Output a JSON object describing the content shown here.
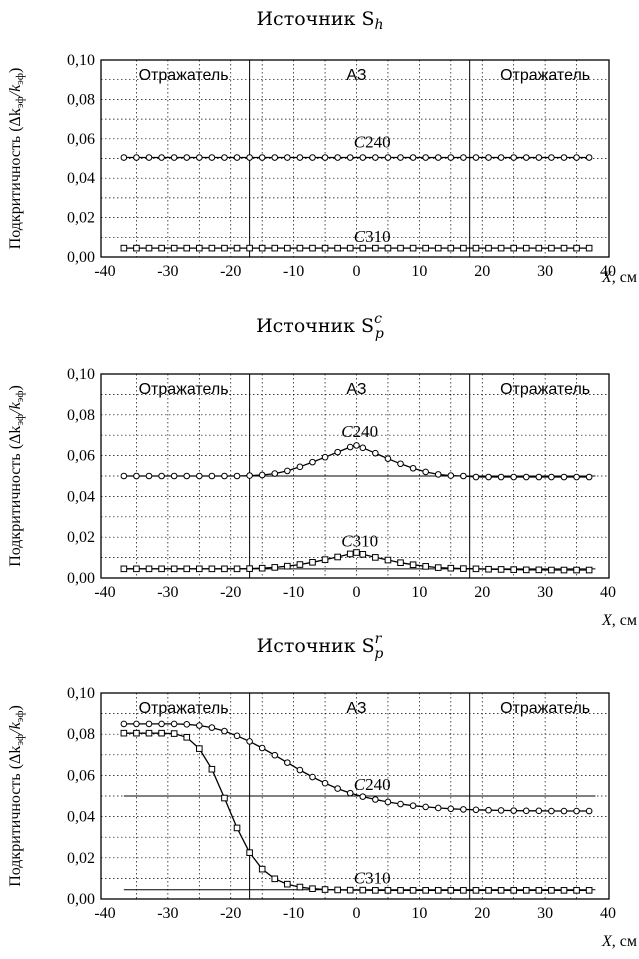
{
  "chart_data": [
    {
      "type": "line",
      "title": "Источник S",
      "title_sub": "h",
      "title_sup": "",
      "ylabel": "Подкритичность (Δk",
      "ylabel_sub1": "эф",
      "ylabel_mid": "/k",
      "ylabel_sub2": "эф",
      "ylabel_end": ")",
      "xlabel_var": "X",
      "xlabel_unit": ", см",
      "xlim": [
        -40,
        40
      ],
      "ylim": [
        0,
        0.1
      ],
      "x_ticks": [
        -40,
        -30,
        -20,
        -10,
        0,
        10,
        20,
        30,
        40
      ],
      "x_tick_labels": [
        "-40",
        "-30",
        "-20",
        "-10",
        "0",
        "10",
        "20",
        "30",
        "40"
      ],
      "y_ticks": [
        0,
        0.02,
        0.04,
        0.06,
        0.08,
        0.1
      ],
      "y_tick_labels": [
        "0,00",
        "0,02",
        "0,04",
        "0,06",
        "0,08",
        "0,10"
      ],
      "grid": true,
      "region_boundaries": [
        -17,
        18
      ],
      "regions": [
        "Отражатель",
        "АЗ",
        "Отражатель"
      ],
      "reference_lines": [],
      "series": [
        {
          "name": "C240",
          "marker": "circle",
          "x": [
            -37,
            -35,
            -33,
            -31,
            -29,
            -27,
            -25,
            -23,
            -21,
            -19,
            -17,
            -15,
            -13,
            -11,
            -9,
            -7,
            -5,
            -3,
            -1,
            1,
            3,
            5,
            7,
            9,
            11,
            13,
            15,
            17,
            19,
            21,
            23,
            25,
            27,
            29,
            31,
            33,
            35,
            37
          ],
          "y": [
            0.0505,
            0.0505,
            0.0505,
            0.0505,
            0.0505,
            0.0505,
            0.0505,
            0.0505,
            0.0505,
            0.0505,
            0.0505,
            0.0505,
            0.0505,
            0.0505,
            0.0505,
            0.0505,
            0.0505,
            0.0505,
            0.0505,
            0.0505,
            0.0505,
            0.0505,
            0.0505,
            0.0505,
            0.0505,
            0.0505,
            0.0505,
            0.0505,
            0.0505,
            0.0505,
            0.0505,
            0.0505,
            0.0505,
            0.0505,
            0.0505,
            0.0505,
            0.0505,
            0.0505
          ]
        },
        {
          "name": "C310",
          "marker": "square",
          "x": [
            -37,
            -35,
            -33,
            -31,
            -29,
            -27,
            -25,
            -23,
            -21,
            -19,
            -17,
            -15,
            -13,
            -11,
            -9,
            -7,
            -5,
            -3,
            -1,
            1,
            3,
            5,
            7,
            9,
            11,
            13,
            15,
            17,
            19,
            21,
            23,
            25,
            27,
            29,
            31,
            33,
            35,
            37
          ],
          "y": [
            0.0045,
            0.0045,
            0.0045,
            0.0045,
            0.0045,
            0.0045,
            0.0045,
            0.0045,
            0.0045,
            0.0045,
            0.0045,
            0.0045,
            0.0045,
            0.0045,
            0.0045,
            0.0045,
            0.0045,
            0.0045,
            0.0045,
            0.0045,
            0.0045,
            0.0045,
            0.0045,
            0.0045,
            0.0045,
            0.0045,
            0.0045,
            0.0045,
            0.0045,
            0.0045,
            0.0045,
            0.0045,
            0.0045,
            0.0045,
            0.0045,
            0.0045,
            0.0045,
            0.0045
          ]
        }
      ]
    },
    {
      "type": "line",
      "title": "Источник S",
      "title_sub": "p",
      "title_sup": "c",
      "ylabel": "Подкритичность (Δk",
      "ylabel_sub1": "эф",
      "ylabel_mid": "/k",
      "ylabel_sub2": "эф",
      "ylabel_end": ")",
      "xlabel_var": "X",
      "xlabel_unit": ", см",
      "xlim": [
        -40,
        40
      ],
      "ylim": [
        0,
        0.1
      ],
      "x_ticks": [
        -40,
        -30,
        -20,
        -10,
        0,
        10,
        20,
        30,
        40
      ],
      "x_tick_labels": [
        "-40",
        "-30",
        "-20",
        "-10",
        "0",
        "10",
        "20",
        "30",
        "40"
      ],
      "y_ticks": [
        0,
        0.02,
        0.04,
        0.06,
        0.08,
        0.1
      ],
      "y_tick_labels": [
        "0,00",
        "0,02",
        "0,04",
        "0,06",
        "0,08",
        "0,10"
      ],
      "grid": true,
      "region_boundaries": [
        -17,
        18
      ],
      "regions": [
        "Отражатель",
        "АЗ",
        "Отражатель"
      ],
      "reference_lines": [
        0.05,
        0.0045
      ],
      "series": [
        {
          "name": "C240",
          "marker": "circle",
          "x": [
            -37,
            -35,
            -33,
            -31,
            -29,
            -27,
            -25,
            -23,
            -21,
            -19,
            -17,
            -15,
            -13,
            -11,
            -9,
            -7,
            -5,
            -3,
            -1,
            0,
            1,
            3,
            5,
            7,
            9,
            11,
            13,
            15,
            17,
            19,
            21,
            23,
            25,
            27,
            29,
            31,
            33,
            35,
            37
          ],
          "y": [
            0.05,
            0.05,
            0.05,
            0.05,
            0.05,
            0.05,
            0.05,
            0.05,
            0.05,
            0.05,
            0.0502,
            0.0505,
            0.0512,
            0.0525,
            0.0545,
            0.0568,
            0.0592,
            0.0617,
            0.0642,
            0.065,
            0.0638,
            0.0612,
            0.0585,
            0.056,
            0.0538,
            0.052,
            0.0508,
            0.0502,
            0.05,
            0.0495,
            0.0495,
            0.0495,
            0.0495,
            0.0495,
            0.0495,
            0.0495,
            0.0495,
            0.0495,
            0.0495
          ]
        },
        {
          "name": "C310",
          "marker": "square",
          "x": [
            -37,
            -35,
            -33,
            -31,
            -29,
            -27,
            -25,
            -23,
            -21,
            -19,
            -17,
            -15,
            -13,
            -11,
            -9,
            -7,
            -5,
            -3,
            -1,
            0,
            1,
            3,
            5,
            7,
            9,
            11,
            13,
            15,
            17,
            19,
            21,
            23,
            25,
            27,
            29,
            31,
            33,
            35,
            37
          ],
          "y": [
            0.0045,
            0.0045,
            0.0045,
            0.0045,
            0.0045,
            0.0045,
            0.0045,
            0.0045,
            0.0045,
            0.0045,
            0.0046,
            0.0048,
            0.0052,
            0.0058,
            0.0066,
            0.0077,
            0.009,
            0.0103,
            0.0118,
            0.0125,
            0.0116,
            0.0101,
            0.0088,
            0.0075,
            0.0065,
            0.0057,
            0.0051,
            0.0048,
            0.0046,
            0.0045,
            0.0043,
            0.0042,
            0.0041,
            0.004,
            0.004,
            0.0039,
            0.0039,
            0.0039,
            0.0039
          ]
        }
      ]
    },
    {
      "type": "line",
      "title": "Источник S",
      "title_sub": "p",
      "title_sup": "r",
      "ylabel": "Подкритичность (Δk",
      "ylabel_sub1": "эф",
      "ylabel_mid": "/k",
      "ylabel_sub2": "эф",
      "ylabel_end": ")",
      "xlabel_var": "X",
      "xlabel_unit": ", см",
      "xlim": [
        -40,
        40
      ],
      "ylim": [
        0,
        0.1
      ],
      "x_ticks": [
        -40,
        -30,
        -20,
        -10,
        0,
        10,
        20,
        30,
        40
      ],
      "x_tick_labels": [
        "-40",
        "-30",
        "-20",
        "-10",
        "0",
        "10",
        "20",
        "30",
        "40"
      ],
      "y_ticks": [
        0,
        0.02,
        0.04,
        0.06,
        0.08,
        0.1
      ],
      "y_tick_labels": [
        "0,00",
        "0,02",
        "0,04",
        "0,06",
        "0,08",
        "0,10"
      ],
      "grid": true,
      "region_boundaries": [
        -17,
        18
      ],
      "regions": [
        "Отражатель",
        "АЗ",
        "Отражатель"
      ],
      "reference_lines": [
        0.05,
        0.0045
      ],
      "series": [
        {
          "name": "C240",
          "marker": "circle",
          "x": [
            -37,
            -35,
            -33,
            -31,
            -29,
            -27,
            -25,
            -23,
            -21,
            -19,
            -17,
            -15,
            -13,
            -11,
            -9,
            -7,
            -5,
            -3,
            -1,
            1,
            3,
            5,
            7,
            9,
            11,
            13,
            15,
            17,
            19,
            21,
            23,
            25,
            27,
            29,
            31,
            33,
            35,
            37
          ],
          "y": [
            0.085,
            0.085,
            0.085,
            0.085,
            0.085,
            0.0848,
            0.0842,
            0.0832,
            0.0815,
            0.0792,
            0.0765,
            0.0733,
            0.0698,
            0.0662,
            0.0626,
            0.0592,
            0.0562,
            0.0536,
            0.0514,
            0.0497,
            0.0483,
            0.0471,
            0.0461,
            0.0453,
            0.0447,
            0.0442,
            0.0438,
            0.0435,
            0.0433,
            0.0431,
            0.043,
            0.0429,
            0.0428,
            0.0428,
            0.0427,
            0.0427,
            0.0427,
            0.0427
          ]
        },
        {
          "name": "C310",
          "marker": "square",
          "x": [
            -37,
            -35,
            -33,
            -31,
            -29,
            -27,
            -25,
            -23,
            -21,
            -19,
            -17,
            -15,
            -13,
            -11,
            -9,
            -7,
            -5,
            -3,
            -1,
            1,
            3,
            5,
            7,
            9,
            11,
            13,
            15,
            17,
            19,
            21,
            23,
            25,
            27,
            29,
            31,
            33,
            35,
            37
          ],
          "y": [
            0.0805,
            0.0805,
            0.0805,
            0.0805,
            0.0803,
            0.0785,
            0.073,
            0.063,
            0.049,
            0.0345,
            0.0225,
            0.0145,
            0.0098,
            0.0072,
            0.0058,
            0.005,
            0.0046,
            0.0044,
            0.0043,
            0.0043,
            0.0042,
            0.0042,
            0.0042,
            0.0042,
            0.0042,
            0.0042,
            0.0042,
            0.0042,
            0.0042,
            0.0042,
            0.0042,
            0.0042,
            0.0042,
            0.0042,
            0.0042,
            0.0042,
            0.0042,
            0.0042
          ]
        }
      ]
    }
  ]
}
